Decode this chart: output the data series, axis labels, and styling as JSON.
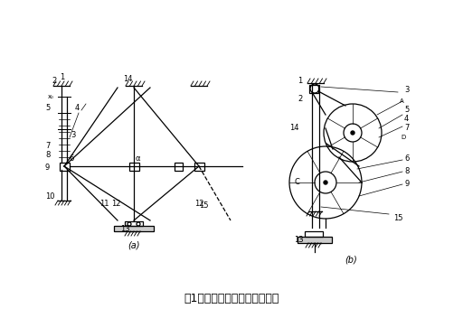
{
  "title": "图1包装机行程机构的工作原理",
  "title_fontsize": 9,
  "bg_color": "#ffffff",
  "line_color": "#000000",
  "label_a": "(a)",
  "label_b": "(b)"
}
